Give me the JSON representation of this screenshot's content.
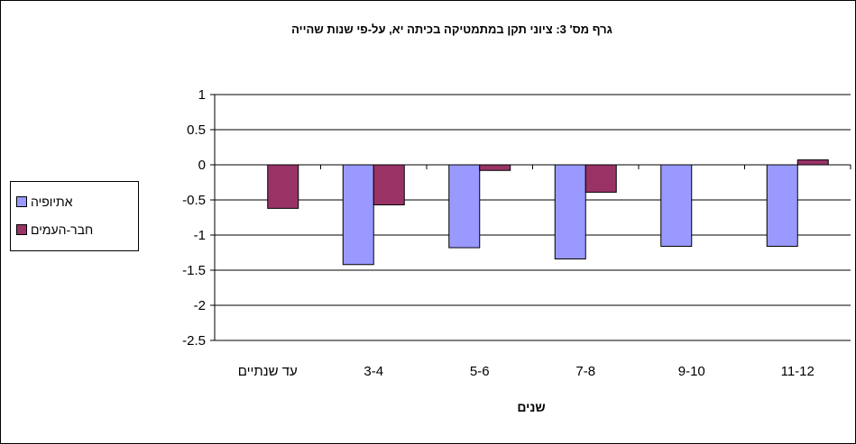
{
  "chart_data": {
    "type": "bar",
    "title": "גרף מס' 3:   ציוני תקן במתמטיקה בכיתה יא, על-פי שנות שהייה",
    "xlabel": "שנים",
    "ylabel": "",
    "categories": [
      "עד שנתיים",
      "3-4",
      "5-6",
      "7-8",
      "9-10",
      "11-12"
    ],
    "series": [
      {
        "name": "אתיופיה",
        "color": "#9999ff",
        "values": [
          null,
          -1.42,
          -1.18,
          -1.34,
          -1.16,
          -1.16
        ]
      },
      {
        "name": "חבר-העמים",
        "color": "#993366",
        "values": [
          -0.62,
          -0.57,
          -0.08,
          -0.39,
          null,
          0.07
        ]
      }
    ],
    "ylim": [
      -2.5,
      1
    ],
    "yticks": [
      1,
      0.5,
      0,
      -0.5,
      -1,
      -1.5,
      -2,
      -2.5
    ],
    "ytick_labels": [
      "1",
      "0.5",
      "0",
      "-0.5",
      "-1",
      "-1.5",
      "-2",
      "-2.5"
    ],
    "grid": true,
    "legend_position": "left"
  }
}
